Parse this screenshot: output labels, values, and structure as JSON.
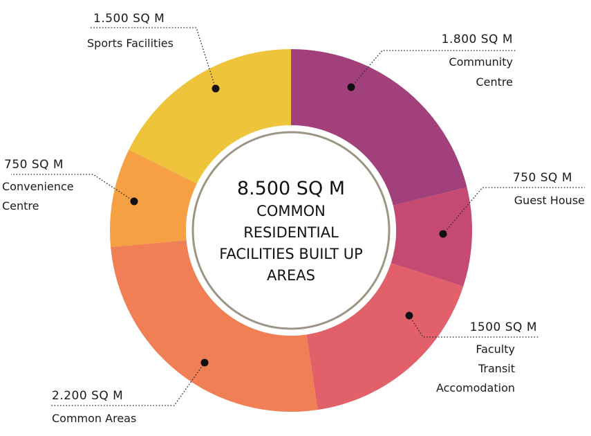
{
  "chart_data": {
    "type": "pie",
    "center": {
      "total": "8.500 SQ M",
      "lines": [
        "COMMON",
        "RESIDENTIAL",
        "FACILITIES BUILT UP",
        "AREAS"
      ]
    },
    "slices": [
      {
        "value_label": "1.800 SQ M",
        "name_lines": [
          "Community",
          "Centre"
        ],
        "value": 1800,
        "color": "#A1407A"
      },
      {
        "value_label": "750 SQ M",
        "name_lines": [
          "Guest House"
        ],
        "value": 750,
        "color": "#C54A72"
      },
      {
        "value_label": "1500 SQ M",
        "name_lines": [
          "Faculty",
          "Transit",
          "Accomodation"
        ],
        "value": 1500,
        "color": "#E1606A"
      },
      {
        "value_label": "2.200 SQ M",
        "name_lines": [
          "Common Areas"
        ],
        "value": 2200,
        "color": "#F07F55"
      },
      {
        "value_label": "750 SQ M",
        "name_lines": [
          "Convenience",
          "Centre"
        ],
        "value": 750,
        "color": "#F4A043"
      },
      {
        "value_label": "1.500 SQ M",
        "name_lines": [
          "Sports Facilities"
        ],
        "value": 1500,
        "color": "#EDC43A"
      }
    ]
  }
}
